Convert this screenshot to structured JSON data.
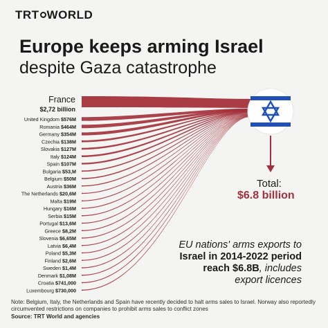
{
  "brand": {
    "logo_text_pre": "TRT",
    "logo_text_post": "WORLD"
  },
  "title": "Europe keeps arming Israel",
  "subtitle": "despite Gaza catastrophe",
  "total": {
    "label": "Total:",
    "value": "$6.8 billion"
  },
  "caption": {
    "line1": "EU nations' arms exports to",
    "line2": "Israel in 2014-2022 period",
    "line3_bold": "reach $6.8B",
    "line3_rest": ", includes",
    "line4": "export licences"
  },
  "note": "Note: Belgium, Italy, the Netherlands and Spain have recently decided to halt arms sales to Israel. Norway also reportedly circumvented restrictions on companies to prohibit arms sales to conflict zones",
  "source": "Source: TRT World and agencies",
  "colors": {
    "flow": "#a3303a",
    "flow_light": "#c27078",
    "arrow": "#a3303a",
    "flag_blue": "#1f4fb8"
  },
  "icons": {
    "flag": "israel-flag-icon",
    "arrow": "arrow-down-icon"
  },
  "chart_data": {
    "type": "sankey",
    "unit": "USD",
    "target": "Israel",
    "top_source": {
      "country": "France",
      "value_label": "$2,72 billion",
      "value": 2720000000
    },
    "sources": [
      {
        "country": "United Kingdom",
        "value_label": "$576M",
        "value": 576000000
      },
      {
        "country": "Romania",
        "value_label": "$464M",
        "value": 464000000
      },
      {
        "country": "Germany",
        "value_label": "$354M",
        "value": 354000000
      },
      {
        "country": "Czechia",
        "value_label": "$138M",
        "value": 138000000
      },
      {
        "country": "Slovakia",
        "value_label": "$127M",
        "value": 127000000
      },
      {
        "country": "Italy",
        "value_label": "$124M",
        "value": 124000000
      },
      {
        "country": "Spain",
        "value_label": "$107M",
        "value": 107000000
      },
      {
        "country": "Bulgaria",
        "value_label": "$53,M",
        "value": 53000000
      },
      {
        "country": "Belgium",
        "value_label": "$50M",
        "value": 50000000
      },
      {
        "country": "Austria",
        "value_label": "$36M",
        "value": 36000000
      },
      {
        "country": "The Netherlands",
        "value_label": "$20,6M",
        "value": 20600000
      },
      {
        "country": "Malta",
        "value_label": "$19M",
        "value": 19000000
      },
      {
        "country": "Hungary",
        "value_label": "$16M",
        "value": 16000000
      },
      {
        "country": "Serbia",
        "value_label": "$15M",
        "value": 15000000
      },
      {
        "country": "Portugal",
        "value_label": "$13,6M",
        "value": 13600000
      },
      {
        "country": "Greece",
        "value_label": "$8,2M",
        "value": 8200000
      },
      {
        "country": "Slovenia",
        "value_label": "$6,65M",
        "value": 6650000
      },
      {
        "country": "Latvia",
        "value_label": "$6,4M",
        "value": 6400000
      },
      {
        "country": "Poland",
        "value_label": "$5,3M",
        "value": 5300000
      },
      {
        "country": "Finland",
        "value_label": "$2,6M",
        "value": 2600000
      },
      {
        "country": "Sweden",
        "value_label": "$1,4M",
        "value": 1400000
      },
      {
        "country": "Denmark",
        "value_label": "$1,08M",
        "value": 1080000
      },
      {
        "country": "Croatia",
        "value_label": "$741,000",
        "value": 741000
      },
      {
        "country": "Luxembourg",
        "value_label": "$730,000",
        "value": 730000
      }
    ]
  }
}
